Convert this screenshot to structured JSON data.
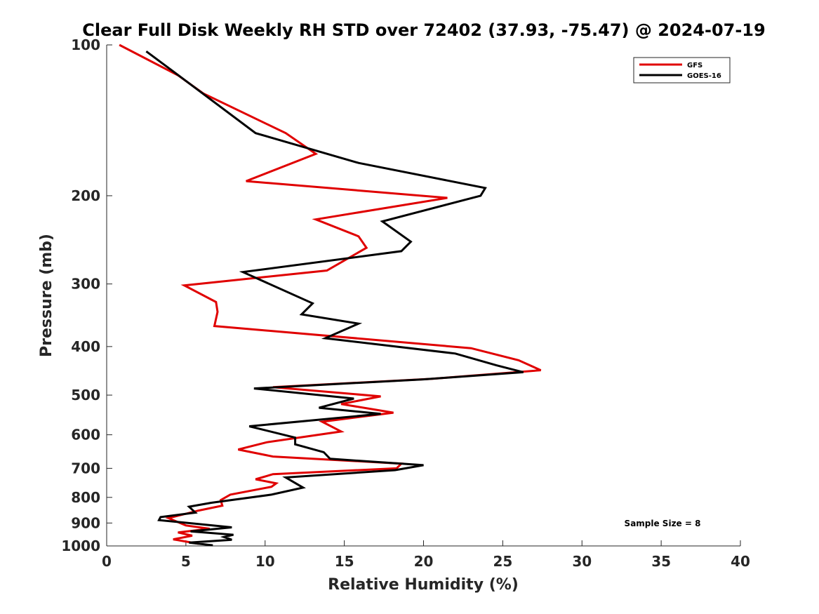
{
  "chart_data": {
    "type": "line",
    "title": "Clear Full Disk Weekly RH STD over 72402 (37.93, -75.47) @ 2024-07-19",
    "xlabel": "Relative Humidity (%)",
    "ylabel": "Pressure (mb)",
    "xlim": [
      0,
      40
    ],
    "ylim": [
      100,
      1000
    ],
    "y_scale": "log",
    "y_reversed": true,
    "x_ticks": [
      0,
      5,
      10,
      15,
      20,
      25,
      30,
      35,
      40
    ],
    "x_tick_labels": [
      "0",
      "5",
      "10",
      "15",
      "20",
      "25",
      "30",
      "35",
      "40"
    ],
    "y_ticks": [
      100,
      200,
      300,
      400,
      500,
      600,
      700,
      800,
      900,
      1000
    ],
    "y_tick_labels": [
      "100",
      "200",
      "300",
      "400",
      "500",
      "600",
      "700",
      "800",
      "900",
      "1000"
    ],
    "grid": false,
    "legend_position": "top-right",
    "annotation": "Sample Size = 8",
    "series": [
      {
        "name": "GFS",
        "color": "#e00000",
        "points": [
          [
            0.8,
            100
          ],
          [
            4.5,
            115
          ],
          [
            6.1,
            125
          ],
          [
            11.3,
            150
          ],
          [
            13.2,
            165
          ],
          [
            8.8,
            187
          ],
          [
            21.5,
            202
          ],
          [
            13.2,
            223
          ],
          [
            15.9,
            241
          ],
          [
            16.4,
            254
          ],
          [
            13.9,
            282
          ],
          [
            4.9,
            302
          ],
          [
            6.9,
            326
          ],
          [
            7.0,
            341
          ],
          [
            6.8,
            364
          ],
          [
            23.0,
            403
          ],
          [
            26.0,
            426
          ],
          [
            27.4,
            446
          ],
          [
            20.5,
            464
          ],
          [
            10.5,
            482
          ],
          [
            17.3,
            503
          ],
          [
            14.8,
            521
          ],
          [
            18.1,
            542
          ],
          [
            13.6,
            565
          ],
          [
            14.8,
            591
          ],
          [
            10.1,
            621
          ],
          [
            8.3,
            642
          ],
          [
            10.5,
            663
          ],
          [
            18.6,
            685
          ],
          [
            18.3,
            700
          ],
          [
            10.5,
            719
          ],
          [
            9.4,
            736
          ],
          [
            10.7,
            750
          ],
          [
            10.4,
            762
          ],
          [
            7.8,
            790
          ],
          [
            7.2,
            810
          ],
          [
            7.3,
            831
          ],
          [
            5.8,
            850
          ],
          [
            3.9,
            880
          ],
          [
            5.0,
            910
          ],
          [
            6.5,
            924
          ],
          [
            4.5,
            940
          ],
          [
            5.4,
            954
          ],
          [
            4.2,
            970
          ],
          [
            5.8,
            990
          ]
        ]
      },
      {
        "name": "GOES-16",
        "color": "#000000",
        "points": [
          [
            2.5,
            103
          ],
          [
            5.0,
            118
          ],
          [
            9.4,
            150
          ],
          [
            15.9,
            172
          ],
          [
            23.9,
            193
          ],
          [
            23.6,
            200
          ],
          [
            17.4,
            225
          ],
          [
            19.2,
            247
          ],
          [
            18.6,
            258
          ],
          [
            8.6,
            284
          ],
          [
            13.0,
            328
          ],
          [
            12.3,
            345
          ],
          [
            15.9,
            360
          ],
          [
            13.8,
            385
          ],
          [
            22.0,
            413
          ],
          [
            24.6,
            436
          ],
          [
            26.3,
            450
          ],
          [
            20.0,
            465
          ],
          [
            9.3,
            485
          ],
          [
            15.6,
            508
          ],
          [
            13.4,
            530
          ],
          [
            17.3,
            545
          ],
          [
            9.0,
            577
          ],
          [
            11.9,
            608
          ],
          [
            11.9,
            627
          ],
          [
            13.7,
            650
          ],
          [
            14.1,
            670
          ],
          [
            20.0,
            690
          ],
          [
            18.2,
            706
          ],
          [
            11.3,
            730
          ],
          [
            12.4,
            765
          ],
          [
            10.4,
            790
          ],
          [
            6.6,
            820
          ],
          [
            5.2,
            835
          ],
          [
            5.6,
            858
          ],
          [
            3.4,
            876
          ],
          [
            3.3,
            888
          ],
          [
            7.9,
            918
          ],
          [
            5.3,
            935
          ],
          [
            8.0,
            950
          ],
          [
            7.4,
            960
          ],
          [
            7.9,
            972
          ],
          [
            5.2,
            985
          ],
          [
            6.7,
            997
          ]
        ]
      }
    ]
  }
}
